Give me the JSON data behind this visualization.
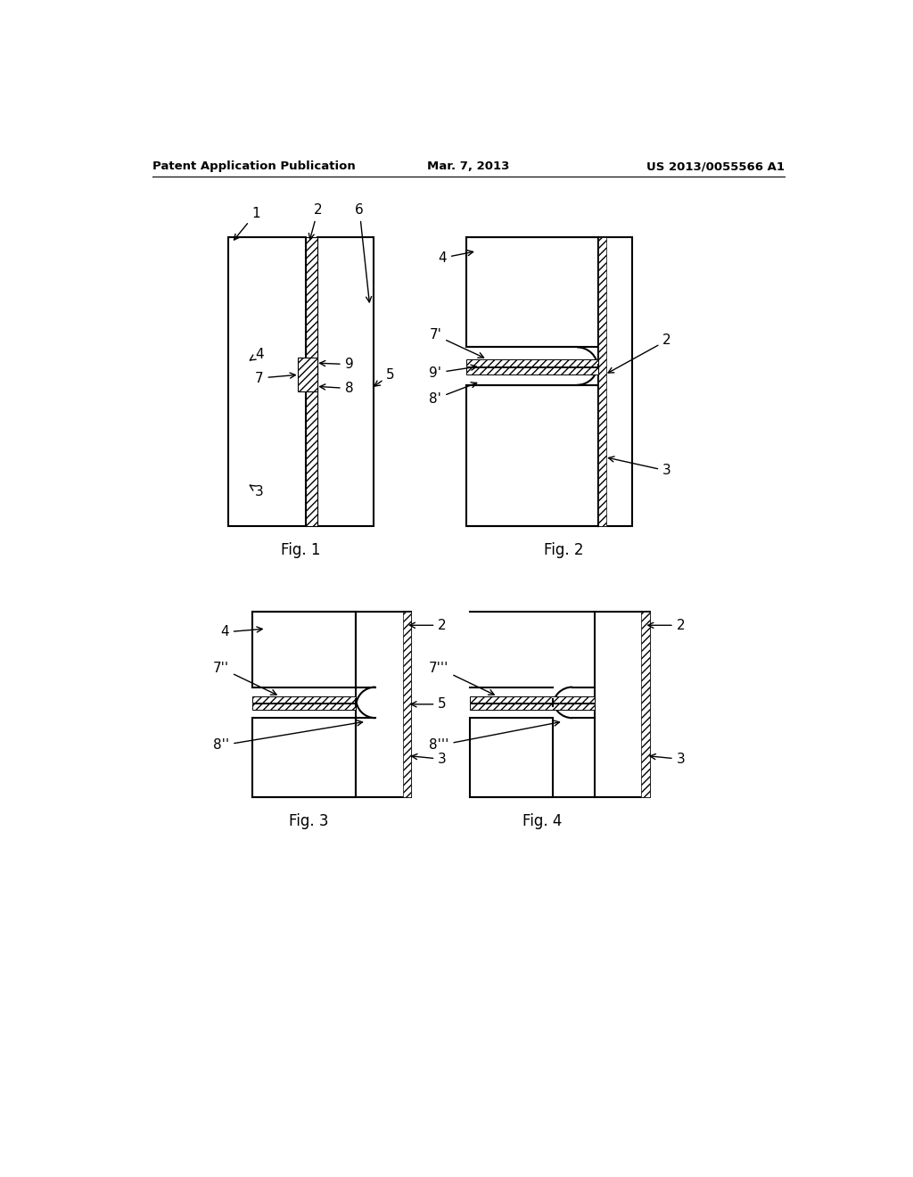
{
  "header_left": "Patent Application Publication",
  "header_center": "Mar. 7, 2013",
  "header_right": "US 2013/0055566 A1",
  "bg_color": "#ffffff",
  "text_color": "#000000"
}
